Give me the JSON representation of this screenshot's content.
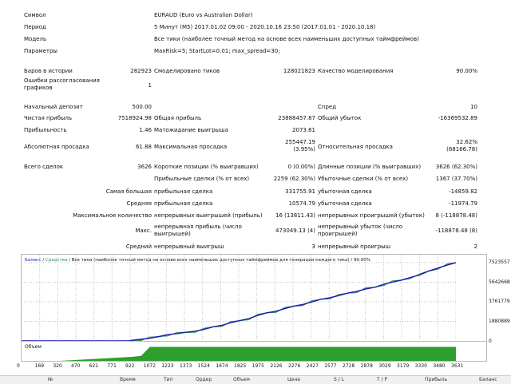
{
  "header": {
    "symbol_label": "Символ",
    "symbol_value": "EURAUD (Euro vs Australian Dollar)",
    "period_label": "Период",
    "period_value": "5 Минут (M5) 2017.01.02 09:00 - 2020.10.16 23:50 (2017.01.01 - 2020.10.18)",
    "model_label": "Модель",
    "model_value": "Все тики (наиболее точный метод на основе всех наименьших доступных таймфреймов)",
    "params_label": "Параметры",
    "params_value": "MaxRisk=5; StartLot=0.01; max_spread=30;"
  },
  "stats": {
    "bars_label": "Баров в истории",
    "bars_value": "282923",
    "ticks_label": "Смоделировано тиков",
    "ticks_value": "128021823",
    "quality_label": "Качество моделирования",
    "quality_value": "90.00%",
    "errors_label_1": "Ошибки рассогласования",
    "errors_label_2": "графиков",
    "errors_value": "1",
    "deposit_label": "Начальный депозит",
    "deposit_value": "500.00",
    "spread_label": "Спред",
    "spread_value": "10",
    "net_label": "Чистая прибыль",
    "net_value": "7518924.98",
    "gross_profit_label": "Общая прибыль",
    "gross_profit_value": "23888457.87",
    "gross_loss_label": "Общий убыток",
    "gross_loss_value": "-16369532.89",
    "pf_label": "Прибыльность",
    "pf_value": "1.46",
    "expected_label": "Матожидание выигрыша",
    "expected_value": "2073.61",
    "abs_dd_label": "Абсолютная просадка",
    "abs_dd_value": "61.88",
    "max_dd_label": "Максимальная просадка",
    "max_dd_value_1": "255447.19",
    "max_dd_value_2": "(3.95%)",
    "rel_dd_label": "Относительная просадка",
    "rel_dd_value_1": "32.62%",
    "rel_dd_value_2": "(68166.78)",
    "total_label": "Всего сделок",
    "total_value": "3626",
    "short_label": "Короткие позиции (% выигравших)",
    "short_value": "0 (0.00%)",
    "long_label": "Длинные позиции (% выигравших)",
    "long_value": "3626 (62.30%)",
    "prof_trades_label": "Прибыльные сделки (% от всех)",
    "prof_trades_value": "2259 (62.30%)",
    "loss_trades_label": "Убыточные сделки (% от всех)",
    "loss_trades_value": "1367 (37.70%)",
    "largest_prefix": "Самая большая",
    "largest_profit_label": "прибыльная сделка",
    "largest_profit_value": "331755.91",
    "largest_loss_label": "убыточная сделка",
    "largest_loss_value": "-14859.82",
    "avg_prefix": "Средняя",
    "avg_profit_label": "прибыльная сделка",
    "avg_profit_value": "10574.79",
    "avg_loss_label": "убыточная сделка",
    "avg_loss_value": "-11974.79",
    "maxcount_prefix": "Максимальное количество",
    "maxcount_win_label": "непрерывных выигрышей (прибыль)",
    "maxcount_win_value": "16 (13811.43)",
    "maxcount_loss_label": "непрерывных проигрышей (убыток)",
    "maxcount_loss_value": "8 (-118878.48)",
    "max_prefix": "Макс.",
    "max_win_label_1": "непрерывная прибыль (число",
    "max_win_label_2": "выигрышей)",
    "max_win_value": "473049.13 (4)",
    "max_loss_label_1": "непрерывный убыток (число",
    "max_loss_label_2": "проигрышей)",
    "max_loss_value": "-118878.48 (8)",
    "avgcount_prefix": "Средний",
    "avgcount_win_label": "непрерывный выигрыш",
    "avgcount_win_value": "3",
    "avgcount_loss_label": "непрерывный проигрыш",
    "avgcount_loss_value": "2"
  },
  "chart_legend": {
    "balance": "Баланс",
    "sep": " / ",
    "equity": "Средства",
    "rest": " / Все тики (наиболее точный метод на основе всех наименьших доступных таймфреймов для генерации каждого тика) / 90.00%"
  },
  "volume_label": "Объем",
  "chart_data": {
    "type": "line",
    "series": [
      {
        "name": "Баланс",
        "color": "#1a1ab0"
      },
      {
        "name": "Средства",
        "color": "#2e8b57"
      }
    ],
    "x_ticks": [
      "0",
      "169",
      "320",
      "470",
      "621",
      "771",
      "922",
      "1072",
      "1223",
      "1373",
      "1524",
      "1674",
      "1825",
      "1975",
      "2126",
      "2276",
      "2427",
      "2577",
      "2728",
      "2878",
      "3029",
      "3179",
      "3330",
      "3480",
      "3631"
    ],
    "y_ticks": [
      "7523557",
      "5642668",
      "3761779",
      "1880889",
      "0"
    ],
    "ylim": [
      0,
      7523557
    ],
    "xlim": [
      0,
      3631
    ],
    "balance_points": [
      [
        0,
        0
      ],
      [
        169,
        0
      ],
      [
        320,
        0
      ],
      [
        470,
        0
      ],
      [
        621,
        0
      ],
      [
        771,
        2000
      ],
      [
        900,
        5000
      ],
      [
        922,
        60000
      ],
      [
        1000,
        150000
      ],
      [
        1072,
        250000
      ],
      [
        1150,
        420000
      ],
      [
        1223,
        600000
      ],
      [
        1300,
        700000
      ],
      [
        1373,
        830000
      ],
      [
        1450,
        930000
      ],
      [
        1524,
        1100000
      ],
      [
        1600,
        1350000
      ],
      [
        1674,
        1500000
      ],
      [
        1750,
        1750000
      ],
      [
        1825,
        1950000
      ],
      [
        1900,
        2150000
      ],
      [
        1975,
        2450000
      ],
      [
        2050,
        2700000
      ],
      [
        2126,
        2850000
      ],
      [
        2200,
        3100000
      ],
      [
        2276,
        3350000
      ],
      [
        2350,
        3500000
      ],
      [
        2427,
        3750000
      ],
      [
        2500,
        4000000
      ],
      [
        2577,
        4150000
      ],
      [
        2650,
        4350000
      ],
      [
        2728,
        4600000
      ],
      [
        2800,
        4750000
      ],
      [
        2878,
        5000000
      ],
      [
        2950,
        5150000
      ],
      [
        3029,
        5450000
      ],
      [
        3100,
        5650000
      ],
      [
        3179,
        5850000
      ],
      [
        3250,
        6100000
      ],
      [
        3330,
        6350000
      ],
      [
        3400,
        6700000
      ],
      [
        3480,
        7000000
      ],
      [
        3560,
        7300000
      ],
      [
        3631,
        7523557
      ]
    ],
    "volume_points": [
      [
        0,
        0
      ],
      [
        160,
        0
      ],
      [
        320,
        0
      ],
      [
        470,
        1
      ],
      [
        621,
        2
      ],
      [
        771,
        3
      ],
      [
        922,
        4
      ],
      [
        1000,
        5
      ],
      [
        1072,
        14
      ],
      [
        3631,
        14
      ]
    ],
    "volume_max": 16,
    "colors": {
      "balance": "#1a1ab0",
      "equity": "#2e8b57",
      "volume": "#2e9e2e",
      "grid": "#c0c0c0"
    }
  },
  "bottom_bar": [
    "№",
    "Время",
    "Тип",
    "Ордер",
    "Объем",
    "Цена",
    "S / L",
    "T / P",
    "Прибыль",
    "Баланс"
  ]
}
